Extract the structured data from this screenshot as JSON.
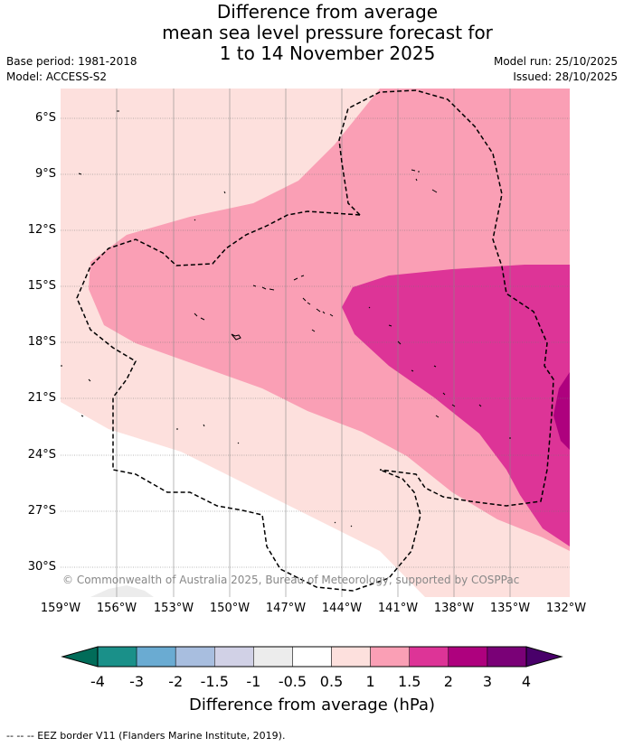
{
  "title": {
    "line1": "Difference from average",
    "line2": "mean sea level pressure forecast for",
    "line3": "1 to 14 November 2025"
  },
  "meta": {
    "base_period": "Base period: 1981-2018",
    "model": "Model: ACCESS-S2",
    "model_run": "Model run: 25/10/2025",
    "issued": "Issued: 28/10/2025"
  },
  "map": {
    "lat_labels": [
      "6°S",
      "9°S",
      "12°S",
      "15°S",
      "18°S",
      "21°S",
      "24°S",
      "27°S",
      "30°S"
    ],
    "lon_labels": [
      "159°W",
      "156°W",
      "153°W",
      "150°W",
      "147°W",
      "144°W",
      "141°W",
      "138°W",
      "135°W",
      "132°W"
    ],
    "copyright": "© Commonwealth of Australia 2025, Bureau of Meteorology, supported by COSPPac"
  },
  "colorbar": {
    "title": "Difference from average (hPa)",
    "ticks": [
      "-4",
      "-3",
      "-2",
      "-1.5",
      "-1",
      "-0.5",
      "0.5",
      "1",
      "1.5",
      "2",
      "3",
      "4"
    ],
    "colors": [
      "#1a9089",
      "#6aabd2",
      "#a8bedf",
      "#d1d1e6",
      "#ececec",
      "#ffffff",
      "#fde0dd",
      "#fa9fb5",
      "#dd3497",
      "#ae017e",
      "#7a0177"
    ],
    "under_color": "#016c59",
    "over_color": "#49006a"
  },
  "footer": {
    "eez": "--  --  -- EEZ border V11 (Flanders Marine Institute, 2019)."
  }
}
